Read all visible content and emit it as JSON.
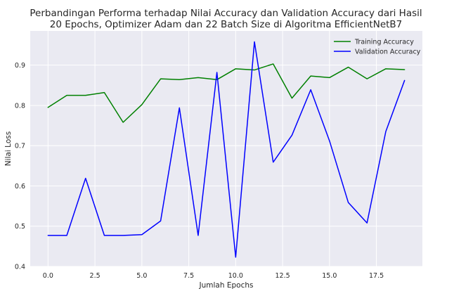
{
  "chart_data": {
    "type": "line",
    "title": "Perbandingan Performa terhadap Nilai Accuracy dan Validation Accuracy dari Hasil\n20 Epochs, Optimizer Adam dan 22 Batch Size di Algoritma EfficientNetB7",
    "xlabel": "Jumlah Epochs",
    "ylabel": "Nilai Loss",
    "x": [
      0,
      1,
      2,
      3,
      4,
      5,
      6,
      7,
      8,
      9,
      10,
      11,
      12,
      13,
      14,
      15,
      16,
      17,
      18,
      19
    ],
    "xticks": [
      "0.0",
      "2.5",
      "5.0",
      "7.5",
      "10.0",
      "12.5",
      "15.0",
      "17.5"
    ],
    "yticks": [
      "0.4",
      "0.5",
      "0.6",
      "0.7",
      "0.8",
      "0.9"
    ],
    "xlim": [
      -0.95,
      19.95
    ],
    "ylim": [
      0.4,
      0.985
    ],
    "grid": true,
    "legend_position": "top-right",
    "series": [
      {
        "name": "Training Accuracy",
        "color": "#008000",
        "values": [
          0.795,
          0.825,
          0.825,
          0.832,
          0.758,
          0.802,
          0.866,
          0.864,
          0.869,
          0.864,
          0.891,
          0.888,
          0.903,
          0.818,
          0.873,
          0.869,
          0.895,
          0.866,
          0.891,
          0.889
        ]
      },
      {
        "name": "Validation Accuracy",
        "color": "#0000ff",
        "values": [
          0.477,
          0.477,
          0.619,
          0.477,
          0.477,
          0.479,
          0.513,
          0.794,
          0.477,
          0.882,
          0.423,
          0.958,
          0.659,
          0.726,
          0.839,
          0.712,
          0.559,
          0.508,
          0.735,
          0.862
        ]
      }
    ]
  }
}
